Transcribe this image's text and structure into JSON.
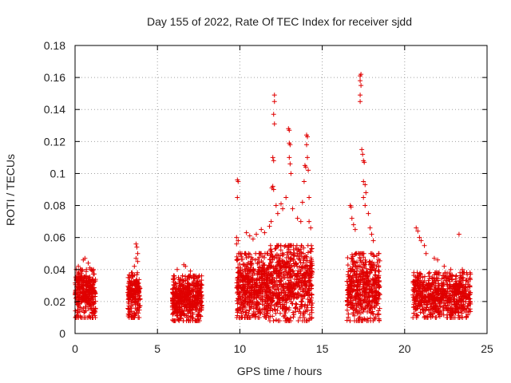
{
  "chart_data": {
    "type": "scatter",
    "title": "Day 155 of 2022, Rate Of TEC Index for receiver sjdd",
    "xlabel": "GPS time / hours",
    "ylabel": "ROTI / TECUs",
    "xlim": [
      0,
      25
    ],
    "ylim": [
      0,
      0.18
    ],
    "x_ticks": [
      "0",
      "5",
      "10",
      "15",
      "20",
      "25"
    ],
    "y_ticks": [
      "0",
      "0.02",
      "0.04",
      "0.06",
      "0.08",
      "0.1",
      "0.12",
      "0.14",
      "0.16",
      "0.18"
    ],
    "grid": true,
    "marker": "plus",
    "color": "#e00000",
    "series": [
      {
        "clusters": [
          {
            "x": [
              0.0,
              1.25
            ],
            "y": [
              0.01,
              0.04
            ],
            "count": 320
          },
          {
            "x": [
              3.2,
              3.95
            ],
            "y": [
              0.01,
              0.038
            ],
            "count": 200
          },
          {
            "x": [
              5.9,
              7.7
            ],
            "y": [
              0.008,
              0.036
            ],
            "count": 500
          },
          {
            "x": [
              9.8,
              11.8
            ],
            "y": [
              0.01,
              0.05
            ],
            "count": 520
          },
          {
            "x": [
              11.8,
              14.4
            ],
            "y": [
              0.008,
              0.055
            ],
            "count": 650
          },
          {
            "x": [
              16.5,
              18.5
            ],
            "y": [
              0.008,
              0.05
            ],
            "count": 500
          },
          {
            "x": [
              20.5,
              24.0
            ],
            "y": [
              0.01,
              0.038
            ],
            "count": 720
          }
        ],
        "points": [
          [
            0.5,
            0.046
          ],
          [
            0.6,
            0.047
          ],
          [
            0.8,
            0.044
          ],
          [
            0.2,
            0.042
          ],
          [
            0.9,
            0.041
          ],
          [
            3.7,
            0.056
          ],
          [
            3.75,
            0.054
          ],
          [
            3.8,
            0.05
          ],
          [
            3.7,
            0.047
          ],
          [
            3.8,
            0.045
          ],
          [
            3.6,
            0.042
          ],
          [
            6.6,
            0.043
          ],
          [
            6.7,
            0.042
          ],
          [
            6.2,
            0.04
          ],
          [
            7.0,
            0.039
          ],
          [
            9.85,
            0.096
          ],
          [
            9.9,
            0.095
          ],
          [
            9.85,
            0.085
          ],
          [
            9.8,
            0.06
          ],
          [
            9.9,
            0.058
          ],
          [
            9.8,
            0.056
          ],
          [
            10.4,
            0.063
          ],
          [
            10.6,
            0.061
          ],
          [
            10.8,
            0.059
          ],
          [
            11.0,
            0.062
          ],
          [
            11.3,
            0.065
          ],
          [
            11.5,
            0.063
          ],
          [
            11.8,
            0.067
          ],
          [
            11.9,
            0.07
          ],
          [
            11.95,
            0.091
          ],
          [
            12.0,
            0.092
          ],
          [
            12.05,
            0.09
          ],
          [
            12.0,
            0.11
          ],
          [
            12.05,
            0.108
          ],
          [
            12.1,
            0.149
          ],
          [
            12.1,
            0.145
          ],
          [
            12.05,
            0.137
          ],
          [
            12.1,
            0.131
          ],
          [
            12.2,
            0.08
          ],
          [
            12.3,
            0.075
          ],
          [
            12.5,
            0.081
          ],
          [
            12.6,
            0.078
          ],
          [
            12.8,
            0.085
          ],
          [
            12.95,
            0.128
          ],
          [
            13.0,
            0.127
          ],
          [
            13.0,
            0.119
          ],
          [
            13.05,
            0.118
          ],
          [
            13.0,
            0.11
          ],
          [
            13.05,
            0.106
          ],
          [
            13.1,
            0.1
          ],
          [
            13.2,
            0.078
          ],
          [
            13.5,
            0.072
          ],
          [
            13.7,
            0.07
          ],
          [
            13.8,
            0.082
          ],
          [
            13.9,
            0.095
          ],
          [
            13.95,
            0.105
          ],
          [
            14.0,
            0.104
          ],
          [
            14.05,
            0.118
          ],
          [
            14.05,
            0.124
          ],
          [
            14.1,
            0.123
          ],
          [
            14.1,
            0.11
          ],
          [
            14.15,
            0.102
          ],
          [
            14.2,
            0.085
          ],
          [
            14.2,
            0.07
          ],
          [
            14.3,
            0.066
          ],
          [
            16.7,
            0.08
          ],
          [
            16.75,
            0.079
          ],
          [
            16.8,
            0.072
          ],
          [
            16.9,
            0.068
          ],
          [
            17.0,
            0.065
          ],
          [
            17.3,
            0.161
          ],
          [
            17.35,
            0.162
          ],
          [
            17.3,
            0.158
          ],
          [
            17.35,
            0.155
          ],
          [
            17.3,
            0.149
          ],
          [
            17.3,
            0.145
          ],
          [
            17.4,
            0.115
          ],
          [
            17.45,
            0.112
          ],
          [
            17.5,
            0.108
          ],
          [
            17.55,
            0.107
          ],
          [
            17.5,
            0.095
          ],
          [
            17.6,
            0.093
          ],
          [
            17.65,
            0.088
          ],
          [
            17.5,
            0.085
          ],
          [
            17.6,
            0.08
          ],
          [
            17.8,
            0.075
          ],
          [
            17.9,
            0.066
          ],
          [
            18.0,
            0.062
          ],
          [
            18.1,
            0.058
          ],
          [
            20.7,
            0.066
          ],
          [
            20.8,
            0.064
          ],
          [
            20.9,
            0.06
          ],
          [
            21.0,
            0.058
          ],
          [
            21.2,
            0.055
          ],
          [
            21.3,
            0.05
          ],
          [
            21.8,
            0.047
          ],
          [
            22.0,
            0.046
          ],
          [
            22.4,
            0.042
          ],
          [
            22.8,
            0.04
          ],
          [
            23.3,
            0.062
          ],
          [
            23.5,
            0.04
          ]
        ]
      }
    ]
  }
}
